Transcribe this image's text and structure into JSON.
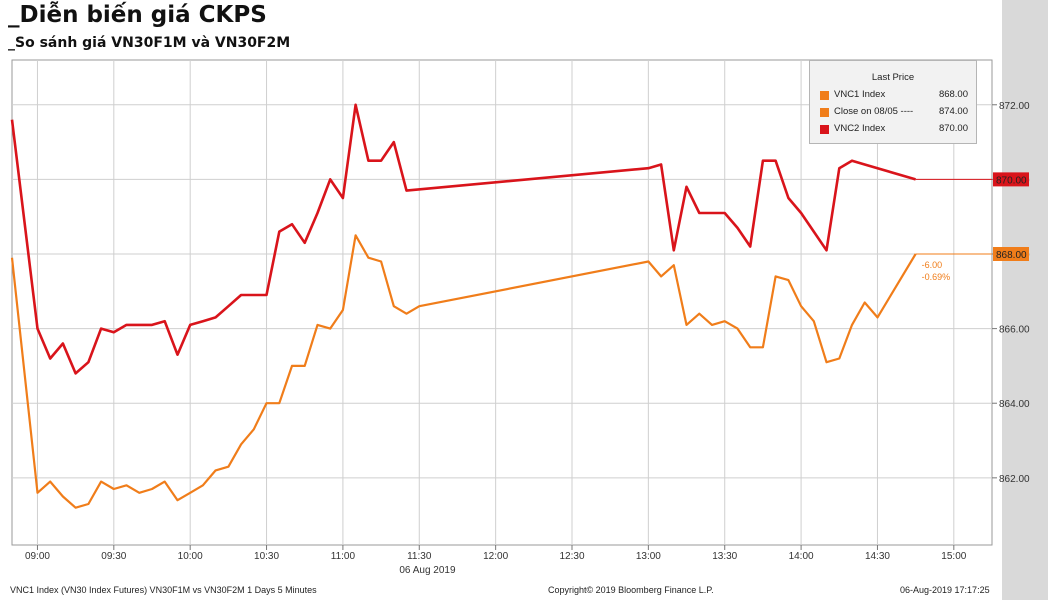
{
  "title": "_Diễn biến giá CKPS",
  "subtitle": "_So sánh giá VN30F1M và VN30F2M",
  "footer": {
    "left": "VNC1 Index (VN30 Index Futures) VN30F1M vs VN30F2M 1 Days 5 Minutes",
    "center": "Copyright© 2019 Bloomberg Finance L.P.",
    "right": "06-Aug-2019 17:17:25"
  },
  "legend": {
    "title": "Last Price",
    "items": [
      {
        "label": "VNC1 Index",
        "value": "868.00",
        "color": "#f07d1a"
      },
      {
        "label": "Close on 08/05 ----",
        "value": "874.00",
        "color": "#f07d1a"
      },
      {
        "label": "VNC2 Index",
        "value": "870.00",
        "color": "#d9141b"
      }
    ]
  },
  "chart_data": {
    "type": "line",
    "xlabel": "06 Aug 2019",
    "ylabel": "",
    "xlim": [
      "08:50",
      "15:15"
    ],
    "ylim": [
      860.2,
      873.2
    ],
    "y_ticks": [
      862,
      864,
      866,
      868,
      870,
      872
    ],
    "y_tick_labels": [
      "862.00",
      "864.00",
      "866.00",
      "868.00",
      "870.00",
      "872.00"
    ],
    "x_ticks": [
      "09:00",
      "09:30",
      "10:00",
      "10:30",
      "11:00",
      "11:30",
      "12:00",
      "12:30",
      "13:00",
      "13:30",
      "14:00",
      "14:30",
      "15:00"
    ],
    "grid": true,
    "legend_position": "top-right",
    "series": [
      {
        "name": "VNC1 Index",
        "color": "#f07d1a",
        "last_value_label": "868.00",
        "change_label": "-6.00",
        "pct_label": "-0.69%",
        "points": [
          [
            "08:50",
            867.9
          ],
          [
            "09:00",
            861.6
          ],
          [
            "09:05",
            861.9
          ],
          [
            "09:10",
            861.5
          ],
          [
            "09:15",
            861.2
          ],
          [
            "09:20",
            861.3
          ],
          [
            "09:25",
            861.9
          ],
          [
            "09:30",
            861.7
          ],
          [
            "09:35",
            861.8
          ],
          [
            "09:40",
            861.6
          ],
          [
            "09:45",
            861.7
          ],
          [
            "09:50",
            861.9
          ],
          [
            "09:55",
            861.4
          ],
          [
            "10:00",
            861.6
          ],
          [
            "10:05",
            861.8
          ],
          [
            "10:10",
            862.2
          ],
          [
            "10:15",
            862.3
          ],
          [
            "10:20",
            862.9
          ],
          [
            "10:25",
            863.3
          ],
          [
            "10:30",
            864.0
          ],
          [
            "10:35",
            864.0
          ],
          [
            "10:40",
            865.0
          ],
          [
            "10:45",
            865.0
          ],
          [
            "10:50",
            866.1
          ],
          [
            "10:55",
            866.0
          ],
          [
            "11:00",
            866.5
          ],
          [
            "11:05",
            868.5
          ],
          [
            "11:10",
            867.9
          ],
          [
            "11:15",
            867.8
          ],
          [
            "11:20",
            866.6
          ],
          [
            "11:25",
            866.4
          ],
          [
            "11:30",
            866.6
          ],
          [
            "13:00",
            867.8
          ],
          [
            "13:05",
            867.4
          ],
          [
            "13:10",
            867.7
          ],
          [
            "13:15",
            866.1
          ],
          [
            "13:20",
            866.4
          ],
          [
            "13:25",
            866.1
          ],
          [
            "13:30",
            866.2
          ],
          [
            "13:35",
            866.0
          ],
          [
            "13:40",
            865.5
          ],
          [
            "13:45",
            865.5
          ],
          [
            "13:50",
            867.4
          ],
          [
            "13:55",
            867.3
          ],
          [
            "14:00",
            866.6
          ],
          [
            "14:05",
            866.2
          ],
          [
            "14:10",
            865.1
          ],
          [
            "14:15",
            865.2
          ],
          [
            "14:20",
            866.1
          ],
          [
            "14:25",
            866.7
          ],
          [
            "14:30",
            866.3
          ],
          [
            "14:45",
            868.0
          ]
        ]
      },
      {
        "name": "VNC2 Index",
        "color": "#d9141b",
        "last_value_label": "870.00",
        "points": [
          [
            "08:50",
            871.6
          ],
          [
            "09:00",
            866.0
          ],
          [
            "09:05",
            865.2
          ],
          [
            "09:10",
            865.6
          ],
          [
            "09:15",
            864.8
          ],
          [
            "09:20",
            865.1
          ],
          [
            "09:25",
            866.0
          ],
          [
            "09:30",
            865.9
          ],
          [
            "09:35",
            866.1
          ],
          [
            "09:40",
            866.1
          ],
          [
            "09:45",
            866.1
          ],
          [
            "09:50",
            866.2
          ],
          [
            "09:55",
            865.3
          ],
          [
            "10:00",
            866.1
          ],
          [
            "10:05",
            866.2
          ],
          [
            "10:10",
            866.3
          ],
          [
            "10:15",
            866.6
          ],
          [
            "10:20",
            866.9
          ],
          [
            "10:25",
            866.9
          ],
          [
            "10:30",
            866.9
          ],
          [
            "10:35",
            868.6
          ],
          [
            "10:40",
            868.8
          ],
          [
            "10:45",
            868.3
          ],
          [
            "10:50",
            869.1
          ],
          [
            "10:55",
            870.0
          ],
          [
            "11:00",
            869.5
          ],
          [
            "11:05",
            872.0
          ],
          [
            "11:10",
            870.5
          ],
          [
            "11:15",
            870.5
          ],
          [
            "11:20",
            871.0
          ],
          [
            "11:25",
            869.7
          ],
          [
            "13:00",
            870.3
          ],
          [
            "13:05",
            870.4
          ],
          [
            "13:10",
            868.1
          ],
          [
            "13:15",
            869.8
          ],
          [
            "13:20",
            869.1
          ],
          [
            "13:25",
            869.1
          ],
          [
            "13:30",
            869.1
          ],
          [
            "13:35",
            868.7
          ],
          [
            "13:40",
            868.2
          ],
          [
            "13:45",
            870.5
          ],
          [
            "13:50",
            870.5
          ],
          [
            "13:55",
            869.5
          ],
          [
            "14:00",
            869.1
          ],
          [
            "14:05",
            868.6
          ],
          [
            "14:10",
            868.1
          ],
          [
            "14:15",
            870.3
          ],
          [
            "14:20",
            870.5
          ],
          [
            "14:25",
            870.4
          ],
          [
            "14:45",
            870.0
          ]
        ]
      }
    ]
  }
}
